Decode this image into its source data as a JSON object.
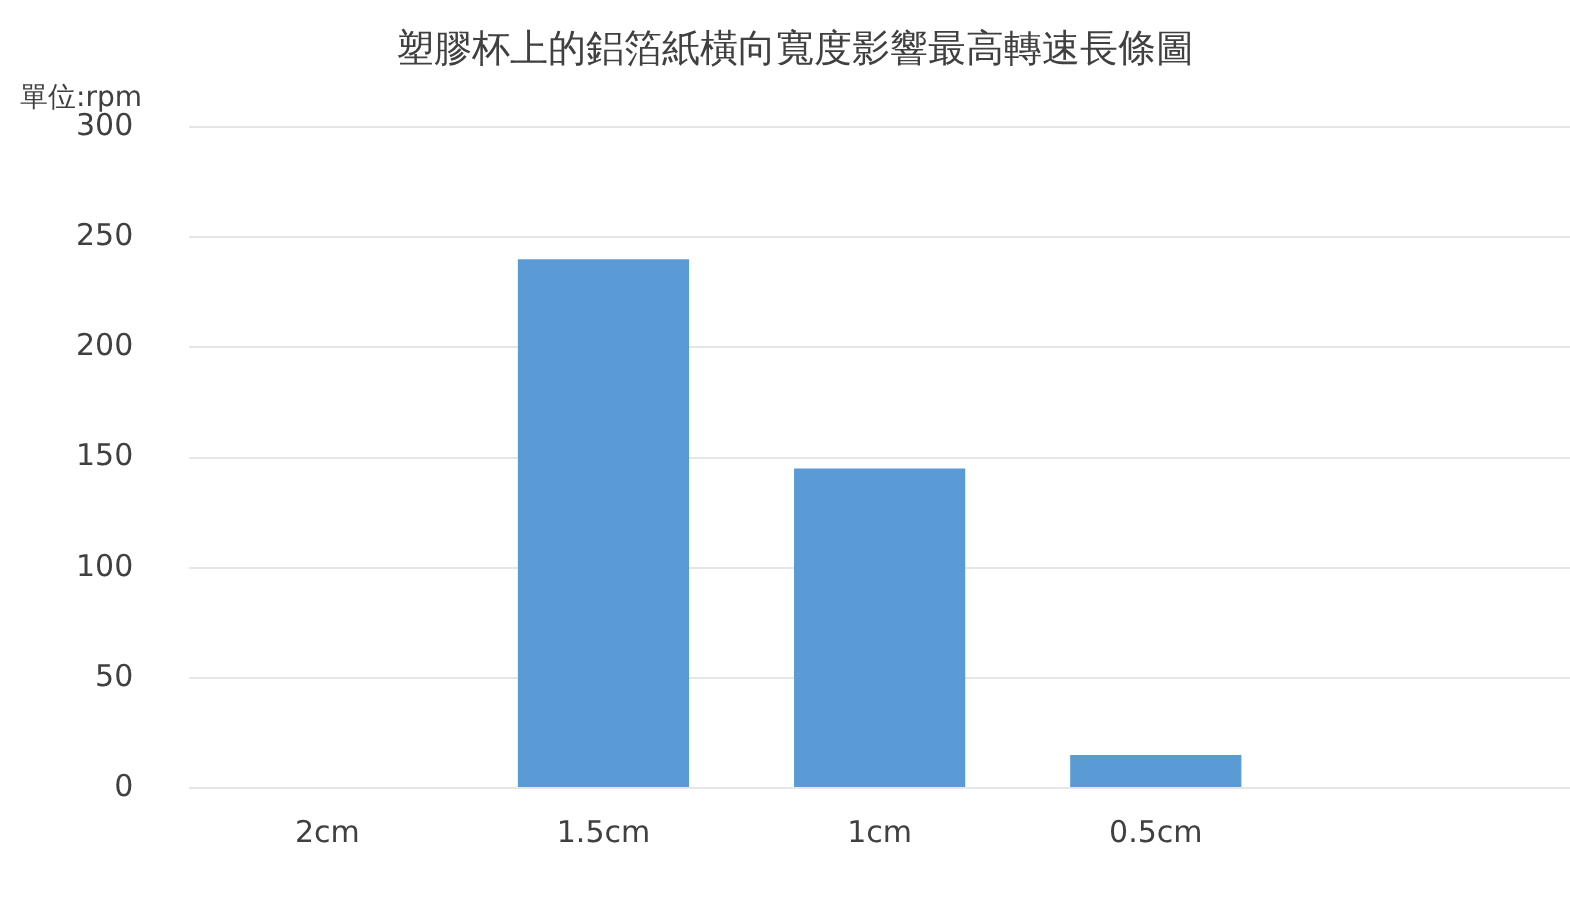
{
  "chart_data": {
    "type": "bar",
    "title": "塑膠杯上的鋁箔紙橫向寬度影響最高轉速長條圖",
    "ylabel": "單位:rpm",
    "categories": [
      "2cm",
      "1.5cm",
      "1cm",
      "0.5cm",
      null
    ],
    "values": [
      0,
      240,
      145,
      15,
      null
    ],
    "color": "#5b9bd5",
    "ylim": [
      0,
      300
    ],
    "yticks": [
      0,
      50,
      100,
      150,
      200,
      250,
      300
    ],
    "grid": "y",
    "legend": false
  }
}
